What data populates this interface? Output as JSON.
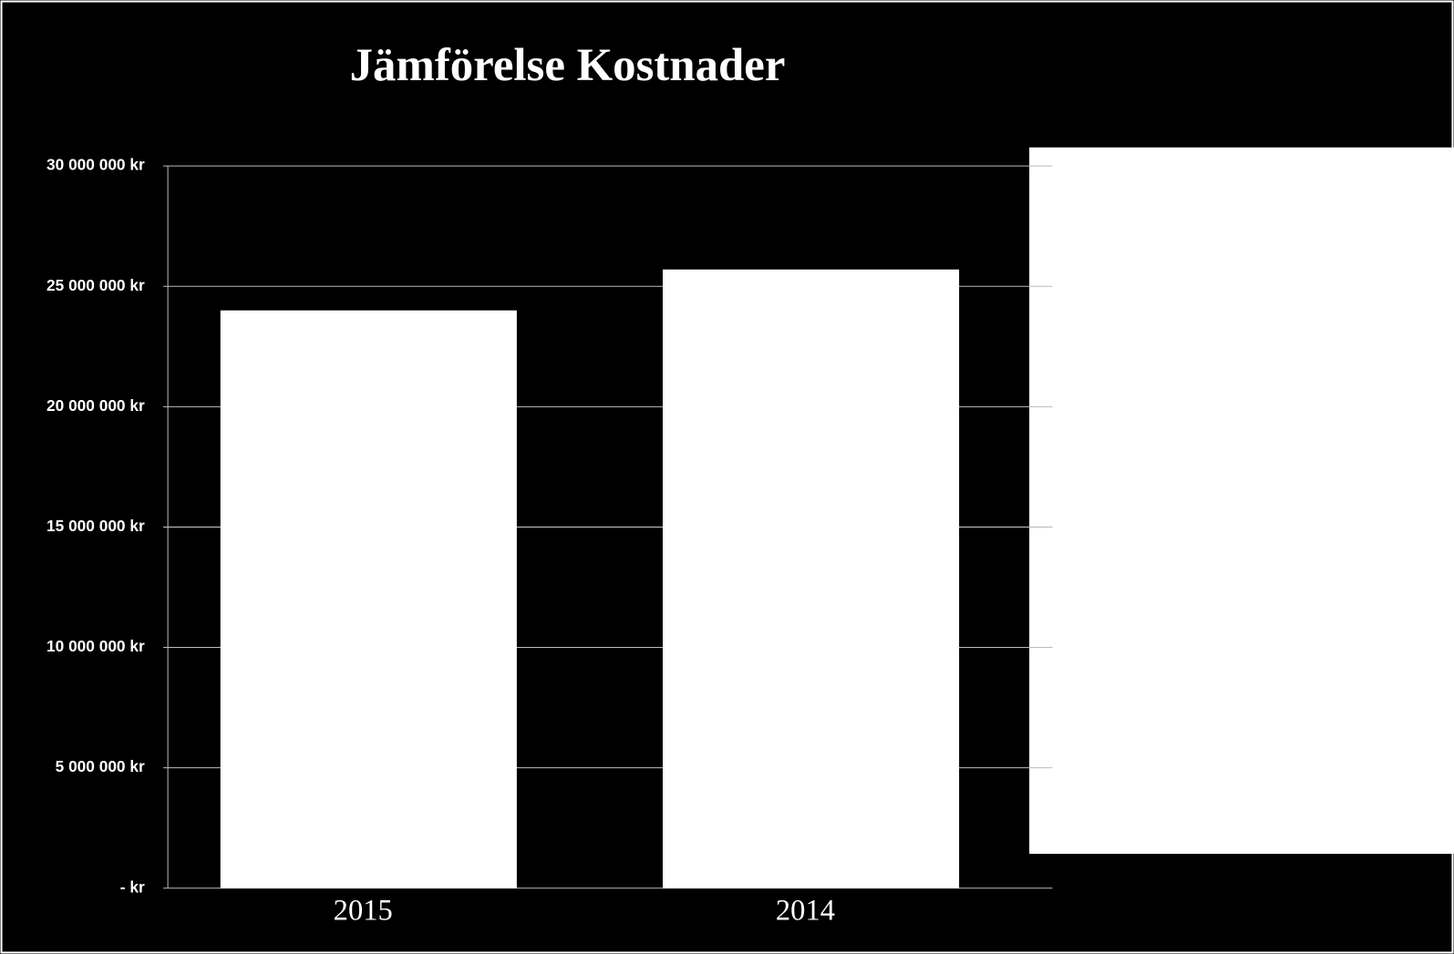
{
  "chart_data": {
    "type": "bar",
    "title": "Jämförelse Kostnader",
    "categories": [
      "2015",
      "2014"
    ],
    "values": [
      24000000,
      25700000
    ],
    "color": "#ffffff",
    "ylim": [
      0,
      30000000
    ],
    "yticks": [
      {
        "value": 0,
        "label": "- kr"
      },
      {
        "value": 5000000,
        "label": "5 000 000 kr"
      },
      {
        "value": 10000000,
        "label": "10 000 000 kr"
      },
      {
        "value": 15000000,
        "label": "15 000 000 kr"
      },
      {
        "value": 20000000,
        "label": "20 000 000 kr"
      },
      {
        "value": 25000000,
        "label": "25 000 000 kr"
      },
      {
        "value": 30000000,
        "label": "30 000 000 kr"
      }
    ],
    "grid": true
  }
}
